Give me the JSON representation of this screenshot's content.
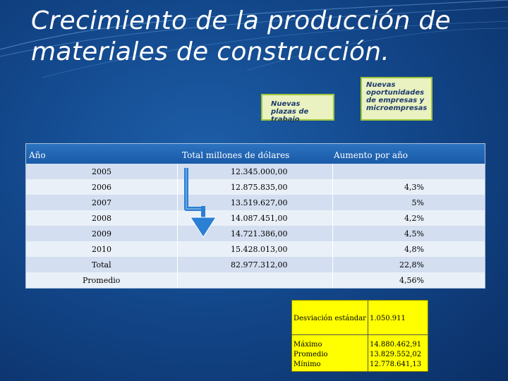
{
  "slide": {
    "title": "Crecimiento de la producción de materiales de construcción.",
    "notes": {
      "plazas": "Nuevas plazas de trabajo",
      "oportunidades": "Nuevas oportunidades de empresas y microempresas"
    }
  },
  "table": {
    "headers": [
      "Año",
      "Total millones de dólares",
      "Aumento por año"
    ],
    "rows": [
      {
        "year": "2005",
        "total": "12.345.000,00",
        "increase": ""
      },
      {
        "year": "2006",
        "total": "12.875.835,00",
        "increase": "4,3%"
      },
      {
        "year": "2007",
        "total": "13.519.627,00",
        "increase": "5%"
      },
      {
        "year": "2008",
        "total": "14.087.451,00",
        "increase": "4,2%"
      },
      {
        "year": "2009",
        "total": "14.721.386,00",
        "increase": "4,5%"
      },
      {
        "year": "2010",
        "total": "15.428.013,00",
        "increase": "4,8%"
      },
      {
        "year": "Total",
        "total": "82.977.312,00",
        "increase": "22,8%"
      },
      {
        "year": "Promedio",
        "total": "",
        "increase": "4,56%"
      }
    ]
  },
  "stats": {
    "desviacion_label": "Desviación estándar",
    "desviacion_value": "1.050.911",
    "maximo_label": "Máximo",
    "maximo_value": "14.880.462,91",
    "promedio_label": "Promedio",
    "promedio_value": "13.829.552,02",
    "minimo_label": "Mínimo",
    "minimo_value": "12.778.641,13"
  },
  "colors": {
    "background": "#13488c",
    "header": "#1a5aa8",
    "row_dark": "#d3def0",
    "row_light": "#eaf0f8",
    "arrow": "#2b7fd4",
    "stats_fill": "#ffff00"
  },
  "icons": {
    "arrow": "down-arrow-icon"
  }
}
